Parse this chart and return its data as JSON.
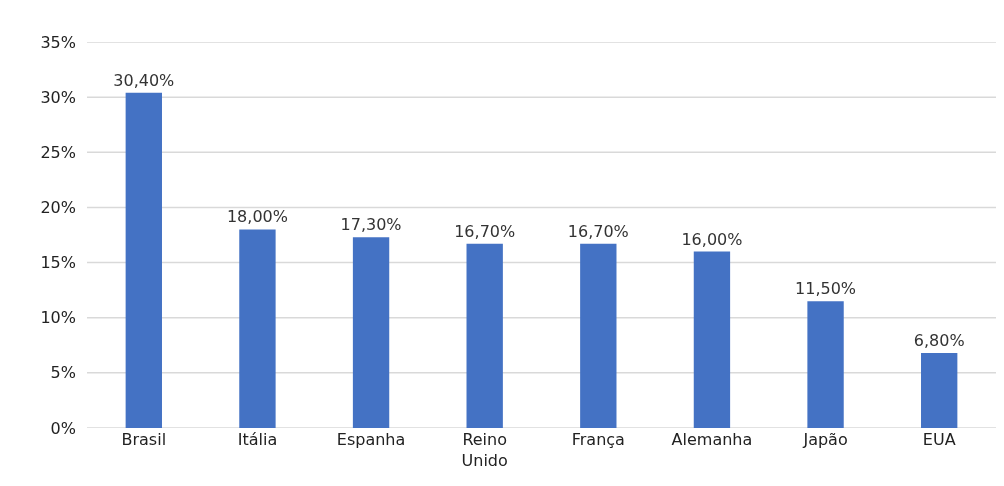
{
  "chart_data": {
    "type": "bar",
    "categories": [
      "Brasil",
      "Itália",
      "Espanha",
      "Reino Unido",
      "França",
      "Alemanha",
      "Japão",
      "EUA"
    ],
    "values": [
      30.4,
      18,
      17.3,
      16.7,
      16.7,
      16,
      11.5,
      6.8
    ],
    "value_labels": [
      "30,40%",
      "18,00%",
      "17,30%",
      "16,70%",
      "16,70%",
      "16,00%",
      "11,50%",
      "6,80%"
    ],
    "color": "#4472c4",
    "ylim": [
      0,
      35
    ],
    "yticks": [
      {
        "value": 0,
        "label": "0%"
      },
      {
        "value": 5,
        "label": "5%"
      },
      {
        "value": 10,
        "label": "10%"
      },
      {
        "value": 15,
        "label": "15%"
      },
      {
        "value": 20,
        "label": "20%"
      },
      {
        "value": 25,
        "label": "25%"
      },
      {
        "value": 30,
        "label": "30%"
      },
      {
        "value": 35,
        "label": "35%"
      }
    ],
    "grid": "y"
  }
}
